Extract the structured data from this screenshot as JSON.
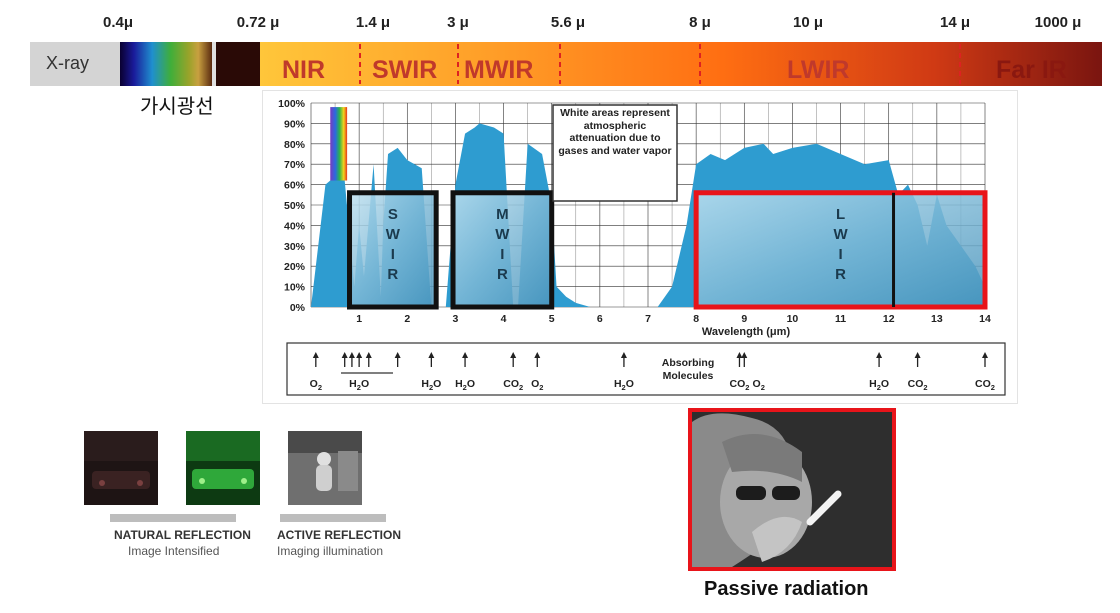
{
  "wavelength_labels": [
    "0.4μ",
    "0.72 μ",
    "1.4 μ",
    "3 μ",
    "5.6 μ",
    "8 μ",
    "10 μ",
    "14 μ",
    "1000 μ"
  ],
  "bands": {
    "xray": "X-ray",
    "nir": "NIR",
    "swir": "SWIR",
    "mwir": "MWIR",
    "lwir": "LWIR",
    "farir": "Far IR"
  },
  "visible_label": "가시광선",
  "colors": {
    "transmission": "#2e9cd0",
    "highlight_red": "#e8141a",
    "band_red": "#c0392b"
  },
  "chart_data": {
    "type": "area",
    "xlabel": "Wavelength (μm)",
    "ylabel": "",
    "xlim": [
      0,
      14
    ],
    "ylim": [
      0,
      100
    ],
    "x_ticks": [
      1,
      2,
      3,
      4,
      5,
      6,
      7,
      8,
      9,
      10,
      11,
      12,
      13,
      14
    ],
    "y_ticks": [
      "0%",
      "10%",
      "20%",
      "30%",
      "40%",
      "50%",
      "60%",
      "70%",
      "80%",
      "90%",
      "100%"
    ],
    "transmission": {
      "x": [
        0,
        0.3,
        0.4,
        0.7,
        0.9,
        1.0,
        1.1,
        1.3,
        1.45,
        1.5,
        1.6,
        1.8,
        2.0,
        2.3,
        2.5,
        2.6,
        2.7,
        2.8,
        3.0,
        3.2,
        3.4,
        3.5,
        3.8,
        4.0,
        4.2,
        4.3,
        4.5,
        4.8,
        5.0,
        5.1,
        5.3,
        5.5,
        5.8,
        6.0,
        6.8,
        7.2,
        7.5,
        7.8,
        8.0,
        8.3,
        8.6,
        9.0,
        9.4,
        9.6,
        10.0,
        10.5,
        11.0,
        11.5,
        12.0,
        12.2,
        12.4,
        12.6,
        12.8,
        13.0,
        13.2,
        13.5,
        13.8,
        14.0
      ],
      "y": [
        0,
        60,
        62,
        62,
        10,
        40,
        15,
        70,
        5,
        40,
        75,
        78,
        72,
        68,
        0,
        0,
        0,
        0,
        60,
        85,
        88,
        90,
        88,
        85,
        0,
        0,
        80,
        75,
        50,
        10,
        5,
        2,
        0,
        0,
        0,
        0,
        10,
        40,
        70,
        75,
        72,
        78,
        80,
        75,
        78,
        80,
        75,
        70,
        72,
        55,
        60,
        50,
        30,
        55,
        40,
        30,
        20,
        10
      ]
    },
    "windows": [
      {
        "label": "S W I R",
        "x": [
          0.8,
          2.6
        ],
        "y_top": 56,
        "color": "black"
      },
      {
        "label": "M W I R",
        "x": [
          2.95,
          5.0
        ],
        "y_top": 56,
        "color": "black"
      },
      {
        "label": "L W I R",
        "x": [
          8.0,
          14.0
        ],
        "y_top": 56,
        "color": "red"
      }
    ],
    "annotation": "White areas represent atmospheric attenuation due to gases and water vapor",
    "absorbing_label": "Absorbing Molecules",
    "molecules": [
      "O2",
      "H2O",
      "H2O",
      "H2O",
      "CO2",
      "O2",
      "H2O",
      "CO2",
      "O2",
      "H2O",
      "CO2",
      "CO2"
    ],
    "molecule_x": [
      0.1,
      1.0,
      2.5,
      3.2,
      4.2,
      4.7,
      6.5,
      8.9,
      9.3,
      11.8,
      12.6,
      14.0
    ],
    "arrow_x": [
      0.1,
      0.7,
      0.85,
      1.0,
      1.2,
      1.8,
      2.5,
      3.2,
      4.2,
      4.7,
      6.5,
      8.9,
      9.0,
      11.8,
      12.6,
      14.0
    ]
  },
  "captions": {
    "natural_title": "NATURAL REFLECTION",
    "natural_sub": "Image Intensified",
    "active_title": "ACTIVE REFLECTION",
    "active_sub": "Imaging illumination",
    "passive": "Passive radiation"
  },
  "icons": {
    "thumb1": "night-scene-image",
    "thumb2": "image-intensified-green-image",
    "thumb3": "active-illumination-image",
    "thermal": "thermal-person-image"
  }
}
